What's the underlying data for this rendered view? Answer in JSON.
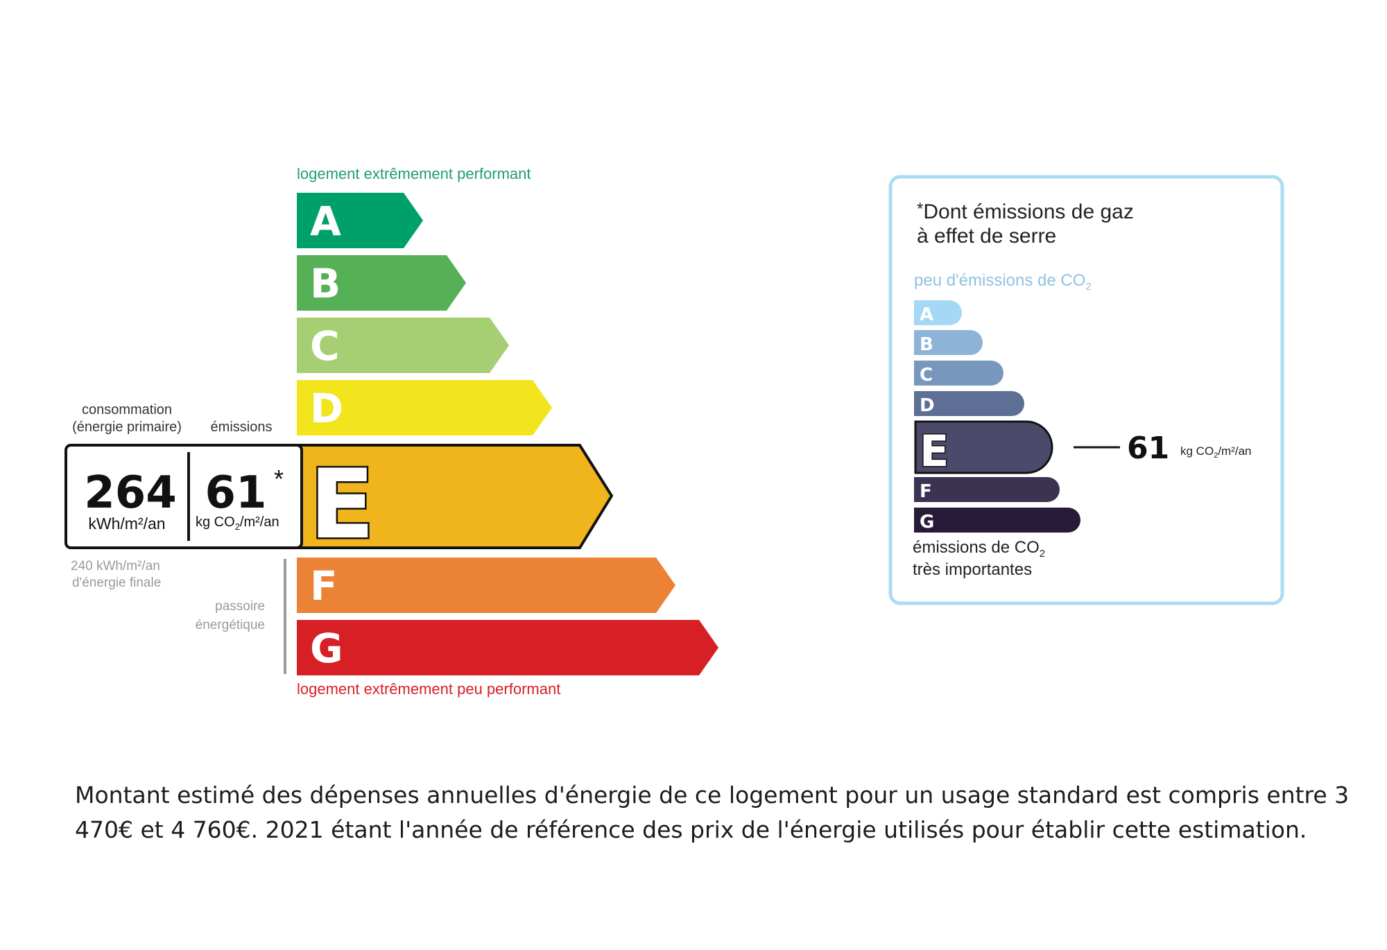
{
  "dpe": {
    "top_label": "logement extrêmement performant",
    "bottom_label": "logement extrêmement peu performant",
    "classes": [
      {
        "letter": "A",
        "color": "#00A06B"
      },
      {
        "letter": "B",
        "color": "#55B056"
      },
      {
        "letter": "C",
        "color": "#A6CF74"
      },
      {
        "letter": "D",
        "color": "#F2E51E"
      },
      {
        "letter": "E",
        "color": "#F0B41C"
      },
      {
        "letter": "F",
        "color": "#EC8235"
      },
      {
        "letter": "G",
        "color": "#D62026"
      }
    ],
    "current_class": "E",
    "consumption_header_1": "consommation",
    "consumption_header_2": "(énergie primaire)",
    "emissions_header": "émissions",
    "consumption_value": "264",
    "consumption_unit": "kWh/m²/an",
    "emissions_value": "61",
    "emissions_asterisk": "*",
    "emissions_unit_prefix": "kg CO",
    "emissions_unit_sub": "2",
    "emissions_unit_suffix": "/m²/an",
    "final_energy_1": "240 kWh/m²/an",
    "final_energy_2": "d'énergie finale",
    "passoire_1": "passoire",
    "passoire_2": "énergétique"
  },
  "ges": {
    "title_asterisk": "*",
    "title_line1": "Dont émissions de gaz",
    "title_line2": "à effet de serre",
    "top_label_prefix": "peu d'émissions de CO",
    "top_label_sub": "2",
    "classes": [
      {
        "letter": "A",
        "color": "#A4D8F4"
      },
      {
        "letter": "B",
        "color": "#8CB4D6"
      },
      {
        "letter": "C",
        "color": "#7797BC"
      },
      {
        "letter": "D",
        "color": "#5E6F95"
      },
      {
        "letter": "E",
        "color": "#4B4A6B"
      },
      {
        "letter": "F",
        "color": "#3A3352"
      },
      {
        "letter": "G",
        "color": "#281B39"
      }
    ],
    "current_class": "E",
    "value": "61",
    "unit_prefix": "kg CO",
    "unit_sub": "2",
    "unit_suffix": "/m²/an",
    "bottom_label_1_prefix": "émissions de CO",
    "bottom_label_1_sub": "2",
    "bottom_label_2": "très importantes",
    "frame_color": "#A9DDF3"
  },
  "footer": {
    "text": "Montant estimé des dépenses annuelles d'énergie de ce logement pour un usage standard est compris entre 3 470€ et 4 760€. 2021 étant l'année de référence des prix de l'énergie utilisés pour établir cette estimation."
  }
}
